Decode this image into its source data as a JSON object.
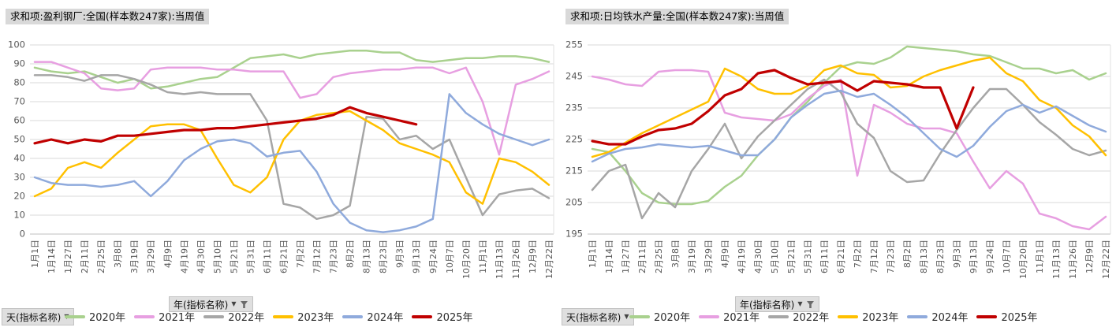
{
  "sheet": {
    "left_chart_title": "求和项:盈利钢厂:全国(样本数247家):当周值",
    "right_chart_title": "求和项:日均铁水产量:全国(样本数247家):当周值",
    "year_field_button": "年(指标名称)",
    "day_field_button": "天(指标名称)"
  },
  "chart_data": [
    {
      "type": "line",
      "title": "求和项:盈利钢厂:全国(样本数247家):当周值",
      "year_field_button": "年(指标名称)",
      "day_field_button": "天(指标名称)",
      "grid": true,
      "legend_position": "bottom",
      "ylim": [
        0,
        100
      ],
      "ystep": 10,
      "x_ticks": [
        "1月1日",
        "1月14日",
        "1月27日",
        "2月11日",
        "2月25日",
        "3月8日",
        "3月19日",
        "3月29日",
        "4月9日",
        "4月19日",
        "4月30日",
        "5月10日",
        "5月21日",
        "5月31日",
        "6月11日",
        "6月21日",
        "7月2日",
        "7月12日",
        "7月23日",
        "8月2日",
        "8月13日",
        "8月23日",
        "9月3日",
        "9月13日",
        "9月24日",
        "10月7日",
        "10月20日",
        "11月1日",
        "11月13日",
        "11月26日",
        "12月9日",
        "12月22日"
      ],
      "series": [
        {
          "name": "2020年",
          "color": "#a9d18e",
          "width": 2.5,
          "values": [
            88,
            86,
            85,
            86,
            83,
            80,
            82,
            77,
            78,
            80,
            82,
            83,
            88,
            93,
            94,
            95,
            93,
            95,
            96,
            97,
            97,
            96,
            96,
            92,
            91,
            92,
            93,
            93,
            94,
            94,
            93,
            91
          ]
        },
        {
          "name": "2021年",
          "color": "#e79fe1",
          "width": 2.5,
          "values": [
            91,
            91,
            88,
            85,
            77,
            76,
            77,
            87,
            88,
            88,
            88,
            87,
            87,
            86,
            86,
            86,
            72,
            74,
            83,
            85,
            86,
            87,
            87,
            88,
            88,
            85,
            88,
            70,
            42,
            79,
            82,
            86
          ]
        },
        {
          "name": "2022年",
          "color": "#a6a6a6",
          "width": 2.5,
          "values": [
            84,
            84,
            83,
            81,
            84,
            84,
            82,
            79,
            75,
            74,
            75,
            74,
            74,
            74,
            60,
            16,
            14,
            8,
            10,
            15,
            62,
            61,
            50,
            52,
            45,
            50,
            30,
            10,
            21,
            23,
            24,
            19
          ]
        },
        {
          "name": "2023年",
          "color": "#ffc000",
          "width": 2.5,
          "values": [
            20,
            24,
            35,
            38,
            35,
            43,
            50,
            57,
            58,
            58,
            55,
            40,
            26,
            22,
            30,
            50,
            60,
            63,
            64,
            65,
            60,
            55,
            48,
            45,
            42,
            38,
            22,
            16,
            40,
            38,
            33,
            26
          ]
        },
        {
          "name": "2024年",
          "color": "#8faadc",
          "width": 2.5,
          "values": [
            30,
            27,
            26,
            26,
            25,
            26,
            28,
            20,
            28,
            39,
            45,
            49,
            50,
            48,
            41,
            43,
            44,
            33,
            16,
            6,
            2,
            1,
            2,
            4,
            8,
            74,
            64,
            58,
            53,
            50,
            47,
            50
          ]
        },
        {
          "name": "2025年",
          "color": "#c00000",
          "width": 3.2,
          "values": [
            48,
            50,
            48,
            50,
            49,
            52,
            52,
            53,
            54,
            55,
            55,
            56,
            56,
            57,
            58,
            59,
            60,
            61,
            63,
            67,
            64,
            62,
            60,
            58,
            null,
            null,
            null,
            null,
            null,
            null,
            null,
            null
          ]
        }
      ]
    },
    {
      "type": "line",
      "title": "求和项:日均铁水产量:全国(样本数247家):当周值",
      "year_field_button": "年(指标名称)",
      "day_field_button": "天(指标名称)",
      "grid": true,
      "legend_position": "bottom",
      "ylim": [
        195,
        255
      ],
      "ystep": 10,
      "x_ticks": [
        "1月1日",
        "1月14日",
        "1月27日",
        "2月11日",
        "2月25日",
        "3月8日",
        "3月19日",
        "3月29日",
        "4月9日",
        "4月19日",
        "4月30日",
        "5月10日",
        "5月21日",
        "5月31日",
        "6月11日",
        "6月21日",
        "7月2日",
        "7月12日",
        "7月23日",
        "8月2日",
        "8月13日",
        "8月23日",
        "9月3日",
        "9月13日",
        "9月24日",
        "10月7日",
        "10月20日",
        "11月1日",
        "11月13日",
        "11月26日",
        "12月9日",
        "12月22日"
      ],
      "series": [
        {
          "name": "2020年",
          "color": "#a9d18e",
          "width": 2.5,
          "values": [
            222,
            221,
            215,
            208,
            205,
            204.5,
            204.5,
            205.5,
            210,
            213.5,
            220,
            225,
            232,
            237,
            243,
            248,
            249.5,
            249,
            251,
            254.5,
            254,
            253.5,
            253,
            252,
            251.5,
            249.5,
            247.5,
            247.5,
            246,
            247,
            244,
            246
          ]
        },
        {
          "name": "2021年",
          "color": "#e79fe1",
          "width": 2.5,
          "values": [
            245,
            244,
            242.5,
            242,
            246.5,
            247,
            247,
            246.5,
            233.5,
            232,
            231.5,
            231,
            233,
            238,
            242,
            244,
            213.5,
            236,
            233.5,
            230,
            228.5,
            228.5,
            227,
            218,
            209.5,
            215,
            211,
            201.5,
            200,
            197.5,
            196.5,
            200.5
          ]
        },
        {
          "name": "2022年",
          "color": "#a6a6a6",
          "width": 2.5,
          "values": [
            209,
            215,
            217,
            200,
            208,
            203.5,
            215,
            222,
            230,
            219,
            226,
            231,
            236,
            241,
            244,
            240,
            230,
            225.5,
            215,
            211.5,
            212,
            220.5,
            228,
            235,
            241,
            241,
            236,
            230.5,
            226.5,
            222,
            220,
            221.5
          ]
        },
        {
          "name": "2023年",
          "color": "#ffc000",
          "width": 2.5,
          "values": [
            219.5,
            221,
            224,
            227,
            229.5,
            232,
            234.5,
            237,
            247.5,
            245,
            241,
            239.5,
            239.5,
            242,
            247,
            248.5,
            246,
            245.5,
            241.5,
            242,
            245,
            247,
            248.5,
            250,
            251,
            246,
            243.5,
            237.5,
            235,
            229.5,
            226,
            220
          ]
        },
        {
          "name": "2024年",
          "color": "#8faadc",
          "width": 2.5,
          "values": [
            218,
            220.5,
            222,
            222.5,
            223.5,
            223,
            222.5,
            223,
            221.5,
            220,
            220,
            225,
            232,
            236,
            239.5,
            240.5,
            238.5,
            239.5,
            236,
            232,
            227,
            222,
            219.5,
            223,
            229,
            234,
            236,
            233.5,
            235.5,
            232.5,
            229.5,
            227.5
          ]
        },
        {
          "name": "2025年",
          "color": "#c00000",
          "width": 3.2,
          "values": [
            224.5,
            223.5,
            223.5,
            226,
            228,
            228.5,
            230,
            234,
            239,
            241,
            246,
            247,
            244.5,
            242.5,
            243,
            243.5,
            240.5,
            243.5,
            243,
            242.5,
            241.5,
            241.5,
            228.5,
            241.5,
            null,
            null,
            null,
            null,
            null,
            null,
            null,
            null
          ]
        }
      ]
    }
  ]
}
